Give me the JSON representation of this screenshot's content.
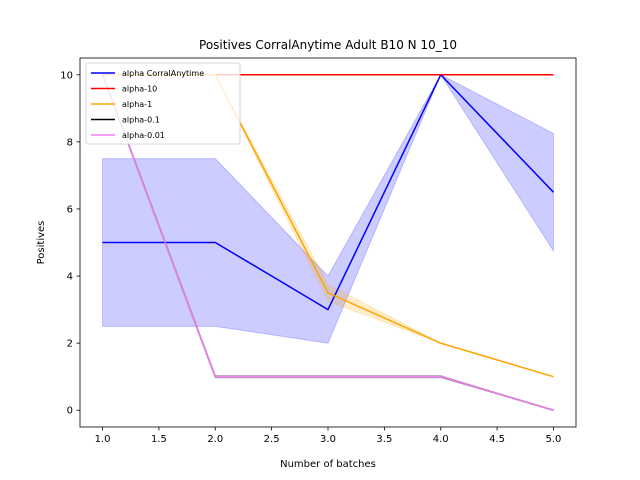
{
  "chart_data": {
    "type": "line",
    "title": "Positives CorralAnytime Adult B10 N 10_10",
    "xlabel": "Number of batches",
    "ylabel": "Positives",
    "xlim": [
      0.8,
      5.2
    ],
    "ylim": [
      -0.5,
      10.5
    ],
    "xticks": [
      1.0,
      1.5,
      2.0,
      2.5,
      3.0,
      3.5,
      4.0,
      4.5,
      5.0
    ],
    "xtick_labels": [
      "1.0",
      "1.5",
      "2.0",
      "2.5",
      "3.0",
      "3.5",
      "4.0",
      "4.5",
      "5.0"
    ],
    "yticks": [
      0,
      2,
      4,
      6,
      8,
      10
    ],
    "ytick_labels": [
      "0",
      "2",
      "4",
      "6",
      "8",
      "10"
    ],
    "grid": false,
    "legend_position": "top-left",
    "x": [
      1,
      2,
      3,
      4,
      5
    ],
    "series": [
      {
        "name": "alpha CorralAnytime",
        "color": "#0000ff",
        "values": [
          5,
          5,
          3,
          10,
          6.5
        ],
        "band_lower": [
          2.5,
          2.5,
          2,
          10,
          4.75
        ],
        "band_upper": [
          7.5,
          7.5,
          4,
          10,
          8.25
        ],
        "band_opacity": 0.2
      },
      {
        "name": "alpha-10",
        "color": "#ff0000",
        "values": [
          10,
          10,
          10,
          10,
          10
        ],
        "band_lower": [
          10,
          10,
          10,
          10,
          10
        ],
        "band_upper": [
          10,
          10,
          10,
          10,
          10
        ],
        "band_opacity": 0.2
      },
      {
        "name": "alpha-1",
        "color": "#ffa500",
        "values": [
          10,
          10,
          3.5,
          2,
          1
        ],
        "band_lower": [
          10,
          10,
          3.25,
          2,
          1
        ],
        "band_upper": [
          10,
          10,
          3.75,
          2,
          1
        ],
        "band_opacity": 0.2
      },
      {
        "name": "alpha-0.1",
        "color": "#000000",
        "values": [
          10,
          1,
          1,
          1,
          0
        ],
        "band_lower": [
          10,
          0.97,
          0.97,
          0.97,
          0
        ],
        "band_upper": [
          10,
          1.03,
          1.03,
          1.03,
          0
        ],
        "band_opacity": 0.2
      },
      {
        "name": "alpha-0.01",
        "color": "#ee82ee",
        "values": [
          10,
          1,
          1,
          1,
          0
        ],
        "band_lower": [
          10,
          0.97,
          0.97,
          0.97,
          0
        ],
        "band_upper": [
          10,
          1.03,
          1.03,
          1.03,
          0
        ],
        "band_opacity": 0.2
      }
    ]
  }
}
